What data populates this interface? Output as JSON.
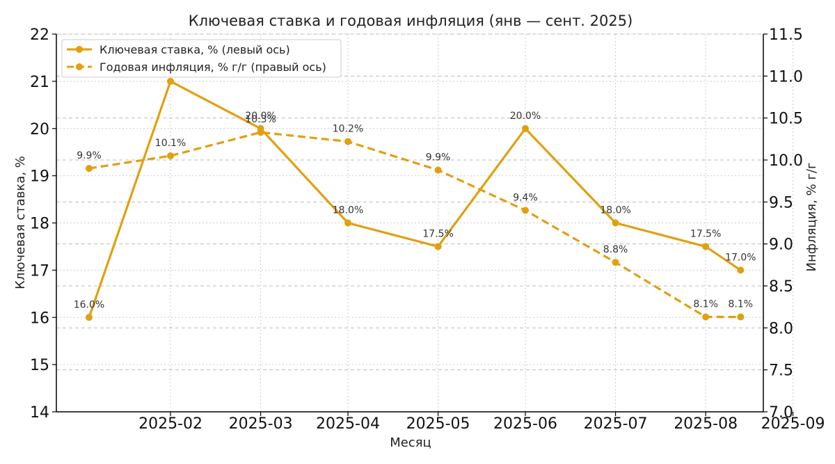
{
  "chart_data": {
    "type": "line",
    "title": "Ключевая ставка и годовая инфляция (янв — сент. 2025)",
    "xlabel": "Месяц",
    "ylabel_left": "Ключевая ставка, %",
    "ylabel_right": "Инфляция, % г/г",
    "ylim_left": [
      14,
      22
    ],
    "ylim_right": [
      7.0,
      11.5
    ],
    "yticks_left": [
      "14",
      "15",
      "16",
      "17",
      "18",
      "19",
      "20",
      "21",
      "22"
    ],
    "yticks_right": [
      "7.0",
      "7.5",
      "8.0",
      "8.5",
      "9.0",
      "9.5",
      "10.0",
      "10.5",
      "11.0",
      "11.5"
    ],
    "x_tick_labels": [
      "2025-02",
      "2025-03",
      "2025-04",
      "2025-05",
      "2025-06",
      "2025-07",
      "2025-08",
      "2025-09"
    ],
    "grid": true,
    "legend_position": "top-left",
    "color": "#E29F0F",
    "series": [
      {
        "name": "Ключевая ставка, % (левый ось)",
        "axis": "left",
        "style": "solid",
        "x": [
          "2025-01-31",
          "2025-02-28",
          "2025-03-31",
          "2025-04-30",
          "2025-05-31",
          "2025-06-30",
          "2025-07-31",
          "2025-08-31",
          "2025-09-12"
        ],
        "values": [
          16.0,
          21.0,
          20.0,
          18.0,
          17.5,
          20.0,
          18.0,
          17.5,
          17.0
        ],
        "labels": [
          "16.0%",
          "",
          "20.0%",
          "18.0%",
          "17.5%",
          "20.0%",
          "18.0%",
          "17.5%",
          "17.0%"
        ]
      },
      {
        "name": "Годовая инфляция, % г/г (правый ось)",
        "axis": "right",
        "style": "dashed",
        "x": [
          "2025-01-31",
          "2025-02-28",
          "2025-03-31",
          "2025-04-30",
          "2025-05-31",
          "2025-06-30",
          "2025-07-31",
          "2025-08-31",
          "2025-09-12"
        ],
        "values": [
          9.9,
          10.05,
          10.33,
          10.22,
          9.88,
          9.4,
          8.78,
          8.13,
          8.13
        ],
        "labels": [
          "9.9%",
          "10.1%",
          "10.3%",
          "10.2%",
          "9.9%",
          "9.4%",
          "8.8%",
          "8.1%",
          "8.1%"
        ]
      }
    ]
  }
}
